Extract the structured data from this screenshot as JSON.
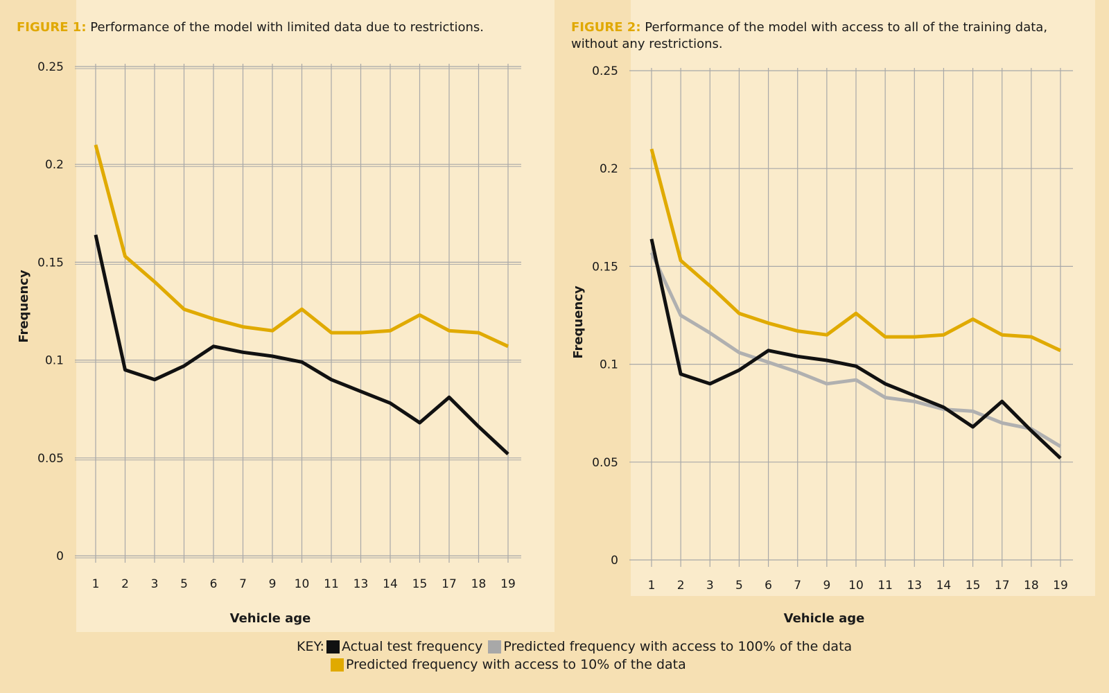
{
  "colors": {
    "background": "#f6e0b3",
    "panel": "#faebcb",
    "grid": "#a8a8a8",
    "actual": "#111111",
    "pred100": "#b0b0b0",
    "pred10": "#e0aa00",
    "accent": "#e0a800"
  },
  "figures": [
    {
      "label": "FIGURE 1:",
      "title": "Performance of the model with limited data due to restrictions.",
      "xlabel": "Vehicle age",
      "ylabel": "Frequency"
    },
    {
      "label": "FIGURE 2:",
      "title": "Performance of the model with access to all of the training data, without any restrictions.",
      "xlabel": "Vehicle age",
      "ylabel": "Frequency"
    }
  ],
  "legend": {
    "prefix": "KEY:",
    "items": [
      {
        "label": "Actual test frequency",
        "color": "#111111"
      },
      {
        "label": "Predicted frequency with access to 100% of the data",
        "color": "#a8a8a8"
      },
      {
        "label": "Predicted frequency with access to 10% of the data",
        "color": "#e0aa00"
      }
    ]
  },
  "chart_data": [
    {
      "type": "line",
      "title": "Performance of the model with limited data due to restrictions.",
      "xlabel": "Vehicle age",
      "ylabel": "Frequency",
      "categories": [
        "1",
        "2",
        "3",
        "5",
        "6",
        "7",
        "9",
        "10",
        "11",
        "13",
        "14",
        "15",
        "17",
        "18",
        "19"
      ],
      "yticks": [
        "0",
        "0.05",
        "0.1",
        "0.15",
        "0.2",
        "0.25"
      ],
      "ylim": [
        0,
        0.25
      ],
      "grid": true,
      "series": [
        {
          "name": "Actual test frequency",
          "color": "#111111",
          "values": [
            0.164,
            0.095,
            0.09,
            0.097,
            0.107,
            0.104,
            0.102,
            0.099,
            0.09,
            0.084,
            0.078,
            0.068,
            0.081,
            0.066,
            0.052
          ]
        },
        {
          "name": "Predicted frequency with access to 10% of the data",
          "color": "#e0aa00",
          "values": [
            0.21,
            0.153,
            0.14,
            0.126,
            0.121,
            0.117,
            0.115,
            0.126,
            0.114,
            0.114,
            0.115,
            0.123,
            0.115,
            0.114,
            0.107
          ]
        }
      ]
    },
    {
      "type": "line",
      "title": "Performance of the model with access to all of the training data, without any restrictions.",
      "xlabel": "Vehicle age",
      "ylabel": "Frequency",
      "categories": [
        "1",
        "2",
        "3",
        "5",
        "6",
        "7",
        "9",
        "10",
        "11",
        "13",
        "14",
        "15",
        "17",
        "18",
        "19"
      ],
      "yticks": [
        "0",
        "0.05",
        "0.1",
        "0.15",
        "0.2",
        "0.25"
      ],
      "ylim": [
        0,
        0.25
      ],
      "grid": true,
      "series": [
        {
          "name": "Predicted frequency with access to 100% of the data",
          "color": "#b0b0b0",
          "values": [
            0.157,
            0.125,
            0.116,
            0.106,
            0.101,
            0.096,
            0.09,
            0.092,
            0.083,
            0.081,
            0.077,
            0.076,
            0.07,
            0.067,
            0.058
          ]
        },
        {
          "name": "Actual test frequency",
          "color": "#111111",
          "values": [
            0.164,
            0.095,
            0.09,
            0.097,
            0.107,
            0.104,
            0.102,
            0.099,
            0.09,
            0.084,
            0.078,
            0.068,
            0.081,
            0.066,
            0.052
          ]
        },
        {
          "name": "Predicted frequency with access to 10% of the data",
          "color": "#e0aa00",
          "values": [
            0.21,
            0.153,
            0.14,
            0.126,
            0.121,
            0.117,
            0.115,
            0.126,
            0.114,
            0.114,
            0.115,
            0.123,
            0.115,
            0.114,
            0.107
          ]
        }
      ]
    }
  ]
}
